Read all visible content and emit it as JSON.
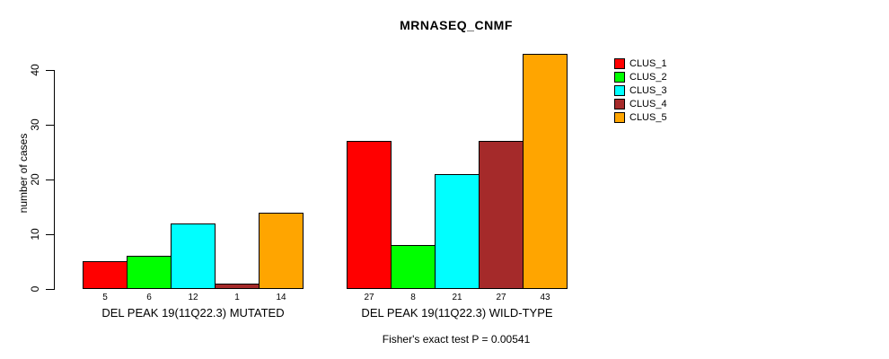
{
  "chart": {
    "title": "MRNASEQ_CNMF",
    "ylabel": "number of cases",
    "footnote": "Fisher's exact test P = 0.00541"
  },
  "chart_data": {
    "type": "bar",
    "title": "MRNASEQ_CNMF",
    "xlabel": "",
    "ylabel": "number of cases",
    "ylim": [
      0,
      43
    ],
    "yticks": [
      0,
      10,
      20,
      30,
      40
    ],
    "grid": false,
    "legend_position": "right-outside-top",
    "bar_value_labels": true,
    "categories": [
      "DEL PEAK 19(11Q22.3) MUTATED",
      "DEL PEAK 19(11Q22.3) WILD-TYPE"
    ],
    "series": [
      {
        "name": "CLUS_1",
        "color": "#FF0000",
        "values": [
          5,
          27
        ]
      },
      {
        "name": "CLUS_2",
        "color": "#00FF00",
        "values": [
          6,
          8
        ]
      },
      {
        "name": "CLUS_3",
        "color": "#00FFFF",
        "values": [
          12,
          21
        ]
      },
      {
        "name": "CLUS_4",
        "color": "#A52A2A",
        "values": [
          1,
          27
        ]
      },
      {
        "name": "CLUS_5",
        "color": "#FFA500",
        "values": [
          14,
          43
        ]
      }
    ],
    "footnote": "Fisher's exact test P = 0.00541"
  }
}
